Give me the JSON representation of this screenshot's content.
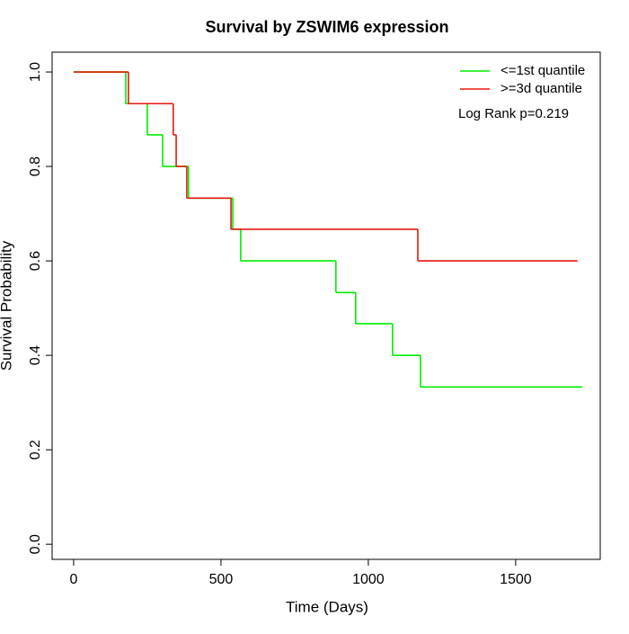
{
  "chart_data": {
    "type": "step",
    "title": "Survival by ZSWIM6 expression",
    "x_label": "Time (Days)",
    "y_label": "Survival Probability",
    "annotation": "Log Rank p=0.219",
    "legend": "top-right",
    "xlim": [
      -73,
      1787
    ],
    "ylim": [
      -0.032,
      1.042
    ],
    "xticks": [
      0,
      500,
      1000,
      1500
    ],
    "yticks": [
      {
        "value": 0,
        "label": "0.0"
      },
      {
        "value": 0.2,
        "label": "0.2"
      },
      {
        "value": 0.4,
        "label": "0.4"
      },
      {
        "value": 0.6,
        "label": "0.6"
      },
      {
        "value": 0.8,
        "label": "0.8"
      },
      {
        "value": 1,
        "label": "1.0"
      }
    ],
    "series": [
      {
        "name": "<=1st quantile",
        "color": "#00ee00",
        "x": [
          0,
          177,
          250,
          302,
          390,
          540,
          567,
          890,
          957,
          1082,
          1177,
          1726
        ],
        "values": [
          1,
          0.933,
          0.867,
          0.8,
          0.733,
          0.667,
          0.6,
          0.533,
          0.467,
          0.4,
          0.333,
          0.333
        ]
      },
      {
        "name": ">=3d quantile",
        "color": "#e8160c",
        "x": [
          0,
          186,
          338,
          348,
          384,
          534,
          1168,
          1710
        ],
        "values": [
          1,
          0.933,
          0.867,
          0.8,
          0.733,
          0.667,
          0.6,
          0.6
        ]
      }
    ]
  }
}
